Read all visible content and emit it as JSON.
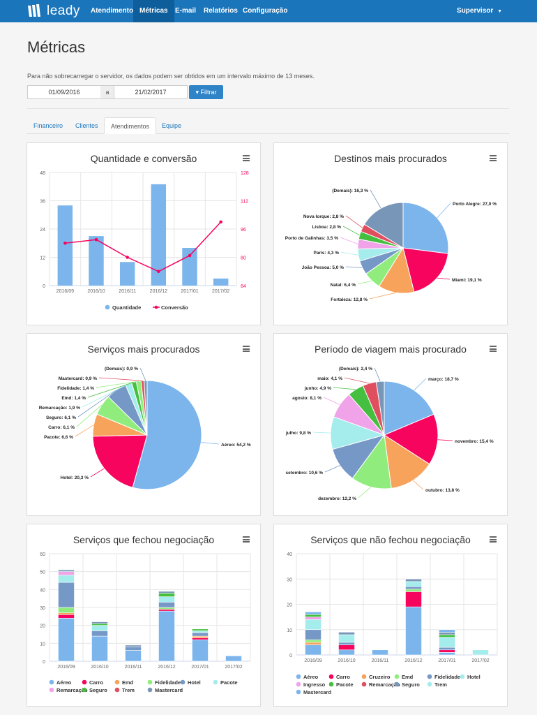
{
  "app": {
    "logo_text": "leady",
    "nav": [
      "Atendimentos",
      "Métricas",
      "E-mail",
      "Relatórios",
      "Configuração"
    ],
    "user_menu": "Supervisor"
  },
  "page": {
    "title": "Métricas",
    "note": "Para não sobrecarregar o servidor, os dados podem ser obtidos em um intervalo máximo de 13 meses.",
    "date_from": "01/09/2016",
    "date_sep": "a",
    "date_to": "21/02/2017",
    "filter_label": "Filtrar",
    "tabs": [
      "Financeiro",
      "Clientes",
      "Atendimentos",
      "Equipe"
    ]
  },
  "colors": {
    "primary": "#1b75bb",
    "blue": "#7cb5ec",
    "pink": "#f7045e"
  },
  "chart_data": [
    {
      "type": "bar",
      "title": "Quantidade e conversão",
      "categories": [
        "2016/09",
        "2016/10",
        "2016/11",
        "2016/12",
        "2017/01",
        "2017/02"
      ],
      "y_ticks": [
        "0",
        "12",
        "24",
        "36",
        "48"
      ],
      "y2_ticks": [
        "64",
        "80",
        "96",
        "112",
        "128"
      ],
      "ylim": [
        0,
        48
      ],
      "y2lim": [
        64,
        128
      ],
      "series": [
        {
          "name": "Quantidade",
          "values": [
            34,
            21,
            10,
            43,
            16,
            3
          ],
          "color": "#7cb5ec"
        },
        {
          "name": "Conversão",
          "values": [
            88,
            90,
            80,
            72,
            81,
            100
          ],
          "color": "#f7045e"
        }
      ],
      "legend": "bottom"
    },
    {
      "type": "pie",
      "title": "Destinos mais procurados",
      "slices": [
        {
          "label": "Porto Alegre: 27,0 %",
          "value": 27.0,
          "color": "#7cb5ec"
        },
        {
          "label": "Miami: 19,1 %",
          "value": 19.1,
          "color": "#f7045e"
        },
        {
          "label": "Fortaleza: 12,8 %",
          "value": 12.8,
          "color": "#f7a35c"
        },
        {
          "label": "Natal: 6,4 %",
          "value": 6.4,
          "color": "#90ed7d"
        },
        {
          "label": "João Pessoa: 5,0 %",
          "value": 5.0,
          "color": "#7698c7"
        },
        {
          "label": "Paris: 4,3 %",
          "value": 4.3,
          "color": "#a5ecec"
        },
        {
          "label": "Porto de Galinhas: 3,5 %",
          "value": 3.5,
          "color": "#f0a3e8"
        },
        {
          "label": "Lisboa: 2,8 %",
          "value": 2.8,
          "color": "#44bf3f"
        },
        {
          "label": "Nova Iorque: 2,8 %",
          "value": 2.8,
          "color": "#e04f5f"
        },
        {
          "label": "(Demais): 16,3 %",
          "value": 16.3,
          "color": "#7896b8"
        }
      ]
    },
    {
      "type": "pie",
      "title": "Serviços mais procurados",
      "slices": [
        {
          "label": "Aéreo: 54,2 %",
          "value": 54.2,
          "color": "#7cb5ec"
        },
        {
          "label": "Hotel: 20,3 %",
          "value": 20.3,
          "color": "#f7045e"
        },
        {
          "label": "Pacote: 6,6 %",
          "value": 6.6,
          "color": "#f7a35c"
        },
        {
          "label": "Carro: 6,1 %",
          "value": 6.1,
          "color": "#90ed7d"
        },
        {
          "label": "Seguro: 6,1 %",
          "value": 6.1,
          "color": "#7698c7"
        },
        {
          "label": "Remarcação: 1,9 %",
          "value": 1.9,
          "color": "#a5ecec"
        },
        {
          "label": "Emd: 1,4 %",
          "value": 1.4,
          "color": "#44bf3f"
        },
        {
          "label": "Fidelidade: 1,4 %",
          "value": 1.4,
          "color": "#90ed7d"
        },
        {
          "label": "Mastercard: 0,9 %",
          "value": 0.9,
          "color": "#e04f5f"
        },
        {
          "label": "(Demais): 0,9 %",
          "value": 0.9,
          "color": "#7896b8"
        }
      ]
    },
    {
      "type": "pie",
      "title": "Período de viagem mais procurado",
      "slices": [
        {
          "label": "março: 18,7 %",
          "value": 18.7,
          "color": "#7cb5ec"
        },
        {
          "label": "novembro: 15,4 %",
          "value": 15.4,
          "color": "#f7045e"
        },
        {
          "label": "outubro: 13,8 %",
          "value": 13.8,
          "color": "#f7a35c"
        },
        {
          "label": "dezembro: 12,2 %",
          "value": 12.2,
          "color": "#90ed7d"
        },
        {
          "label": "setembro: 10,6 %",
          "value": 10.6,
          "color": "#7698c7"
        },
        {
          "label": "julho: 9,8 %",
          "value": 9.8,
          "color": "#a5ecec"
        },
        {
          "label": "agosto: 8,1 %",
          "value": 8.1,
          "color": "#f0a3e8"
        },
        {
          "label": "junho: 4,9 %",
          "value": 4.9,
          "color": "#44bf3f"
        },
        {
          "label": "maio: 4,1 %",
          "value": 4.1,
          "color": "#e04f5f"
        },
        {
          "label": "(Demais): 2,4 %",
          "value": 2.4,
          "color": "#7896b8"
        }
      ]
    },
    {
      "type": "bar",
      "stacked": true,
      "title": "Serviços que fechou negociação",
      "categories": [
        "2016/09",
        "2016/10",
        "2016/11",
        "2016/12",
        "2017/01",
        "2017/02"
      ],
      "y_ticks": [
        "0",
        "10",
        "20",
        "30",
        "40",
        "50",
        "60"
      ],
      "ylim": [
        0,
        60
      ],
      "series": [
        {
          "name": "Aéreo",
          "values": [
            24,
            14,
            6,
            28,
            12,
            3
          ],
          "color": "#7cb5ec"
        },
        {
          "name": "Carro",
          "values": [
            2,
            0,
            0,
            1,
            1,
            0
          ],
          "color": "#f7045e"
        },
        {
          "name": "Emd",
          "values": [
            1,
            0,
            0,
            0,
            1,
            0
          ],
          "color": "#f7a35c"
        },
        {
          "name": "Fidelidade",
          "values": [
            3,
            0,
            0,
            1,
            0,
            0
          ],
          "color": "#90ed7d"
        },
        {
          "name": "Hotel",
          "values": [
            14,
            3,
            2,
            3,
            2,
            0
          ],
          "color": "#7698c7"
        },
        {
          "name": "Pacote",
          "values": [
            4,
            3,
            0,
            3,
            1,
            0
          ],
          "color": "#a5ecec"
        },
        {
          "name": "Remarcação",
          "values": [
            2,
            0,
            0,
            0,
            0,
            0
          ],
          "color": "#f0a3e8"
        },
        {
          "name": "Seguro",
          "values": [
            0,
            1,
            0,
            2,
            1,
            0
          ],
          "color": "#44bf3f"
        },
        {
          "name": "Trem",
          "values": [
            0,
            0,
            0,
            0,
            0,
            0
          ],
          "color": "#e04f5f"
        },
        {
          "name": "Mastercard",
          "values": [
            1,
            1,
            1,
            1,
            0,
            0
          ],
          "color": "#7896b8"
        }
      ],
      "legend": "bottom"
    },
    {
      "type": "bar",
      "stacked": true,
      "title": "Serviços que não fechou negociação",
      "categories": [
        "2016/09",
        "2016/10",
        "2016/11",
        "2016/12",
        "2017/01",
        "2017/02"
      ],
      "y_ticks": [
        "0",
        "10",
        "20",
        "30",
        "40"
      ],
      "ylim": [
        0,
        40
      ],
      "series": [
        {
          "name": "Aéreo",
          "values": [
            4,
            2,
            2,
            19,
            1,
            0
          ],
          "color": "#7cb5ec"
        },
        {
          "name": "Carro",
          "values": [
            0,
            2,
            0,
            6,
            1,
            0
          ],
          "color": "#f7045e"
        },
        {
          "name": "Cruzeiro",
          "values": [
            1,
            0,
            0,
            0,
            0,
            0
          ],
          "color": "#f7a35c"
        },
        {
          "name": "Emd",
          "values": [
            1,
            0,
            0,
            1,
            0,
            0
          ],
          "color": "#90ed7d"
        },
        {
          "name": "Fidelidade",
          "values": [
            4,
            1,
            0,
            1,
            1,
            0
          ],
          "color": "#7698c7"
        },
        {
          "name": "Hotel",
          "values": [
            4,
            3,
            0,
            2,
            4,
            2
          ],
          "color": "#a5ecec"
        },
        {
          "name": "Ingresso",
          "values": [
            1,
            0,
            0,
            0,
            0,
            0
          ],
          "color": "#f0a3e8"
        },
        {
          "name": "Pacote",
          "values": [
            1,
            0,
            0,
            0,
            1,
            0
          ],
          "color": "#44bf3f"
        },
        {
          "name": "Remarcação",
          "values": [
            0,
            0,
            0,
            0,
            0,
            0
          ],
          "color": "#e04f5f"
        },
        {
          "name": "Seguro",
          "values": [
            0,
            1,
            0,
            1,
            1,
            0
          ],
          "color": "#7896b8"
        },
        {
          "name": "Trem",
          "values": [
            0,
            0,
            0,
            0,
            0,
            0
          ],
          "color": "#a5ecec"
        },
        {
          "name": "Mastercard",
          "values": [
            1,
            0,
            0,
            0,
            1,
            0
          ],
          "color": "#7cb5ec"
        }
      ],
      "legend": "bottom"
    }
  ]
}
